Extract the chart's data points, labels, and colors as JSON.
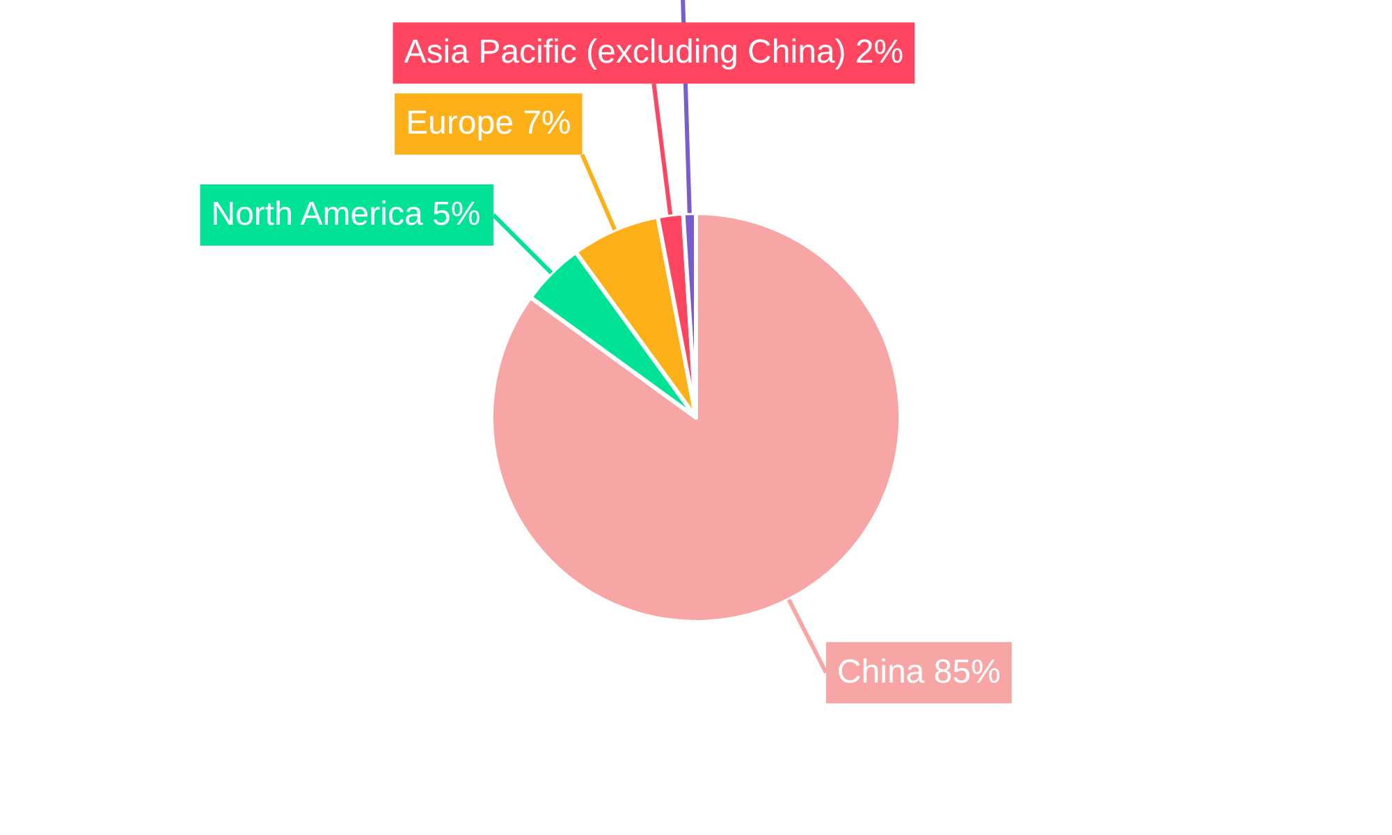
{
  "chart_data": {
    "type": "pie",
    "categories": [
      "China",
      "North America",
      "Europe",
      "Asia Pacific (excluding China)",
      null
    ],
    "values": [
      85,
      5,
      7,
      2,
      1
    ],
    "colors": [
      "#f8a5a6",
      "#00e396",
      "#feb019",
      "#ff4560",
      "#775dd0"
    ],
    "value_labels": [
      "85%",
      "5%",
      "7%",
      "2%",
      null
    ]
  }
}
